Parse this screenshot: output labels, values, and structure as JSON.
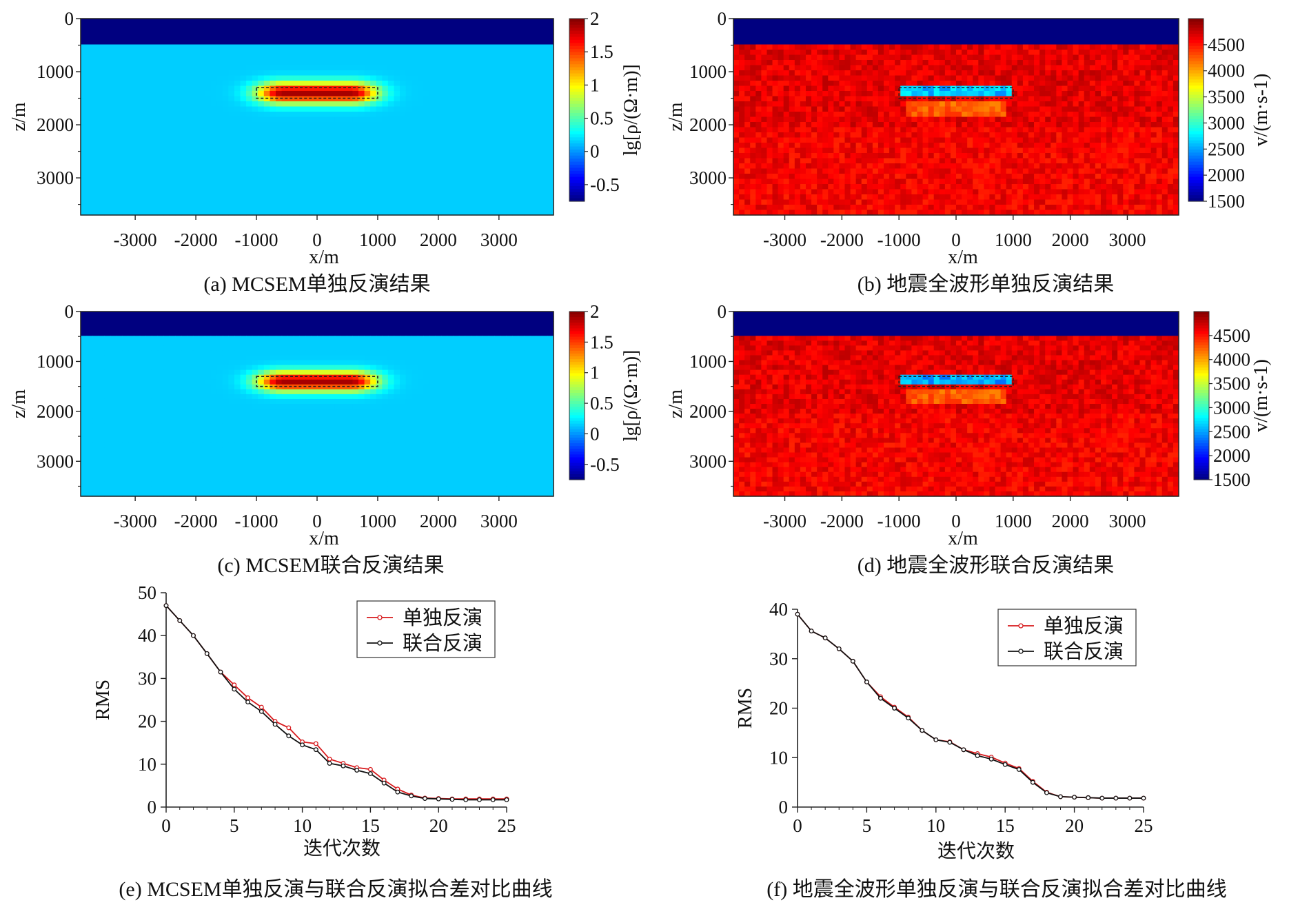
{
  "chart_data": [
    {
      "id": "a",
      "type": "heatmap",
      "caption": "(a) MCSEM单独反演结果",
      "xlabel": "x/m",
      "ylabel": "z/m",
      "xlim": [
        -3900,
        3900
      ],
      "ylim": [
        3700,
        0
      ],
      "xticks": [
        -3000,
        -2000,
        -1000,
        0,
        1000,
        2000,
        3000
      ],
      "yticks": [
        0,
        1000,
        2000,
        3000
      ],
      "colorbar": {
        "label": "lg[ρ/(Ω·m)]",
        "range": [
          -0.75,
          2
        ],
        "ticks": [
          2,
          1.5,
          1,
          0.5,
          0,
          -0.5
        ],
        "colormap": "jet"
      },
      "water_layer": {
        "z_bottom": 500,
        "value": -0.75
      },
      "background_value": 0.15,
      "anomaly": {
        "x": [
          -1000,
          1000
        ],
        "z": [
          1300,
          1500
        ],
        "peak": 1.9,
        "style": "resistive"
      }
    },
    {
      "id": "b",
      "type": "heatmap",
      "caption": "(b) 地震全波形单独反演结果",
      "xlabel": "x/m",
      "ylabel": "z/m",
      "xlim": [
        -3900,
        3900
      ],
      "ylim": [
        3700,
        0
      ],
      "xticks": [
        -3000,
        -2000,
        -1000,
        0,
        1000,
        2000,
        3000
      ],
      "yticks": [
        0,
        1000,
        2000,
        3000
      ],
      "colorbar": {
        "label": "v/(m·s-1)",
        "range": [
          1500,
          5000
        ],
        "ticks": [
          4500,
          4000,
          3500,
          3000,
          2500,
          2000,
          1500
        ],
        "colormap": "jet"
      },
      "water_layer": {
        "z_bottom": 500,
        "value": 1500
      },
      "background_value": 4650,
      "anomaly": {
        "x": [
          -1000,
          1000
        ],
        "z": [
          1300,
          1500
        ],
        "peak": 2600,
        "style": "slow"
      }
    },
    {
      "id": "c",
      "type": "heatmap",
      "caption": "(c) MCSEM联合反演结果",
      "xlabel": "x/m",
      "ylabel": "z/m",
      "xlim": [
        -3900,
        3900
      ],
      "ylim": [
        3700,
        0
      ],
      "xticks": [
        -3000,
        -2000,
        -1000,
        0,
        1000,
        2000,
        3000
      ],
      "yticks": [
        0,
        1000,
        2000,
        3000
      ],
      "colorbar": {
        "label": "lg[ρ/(Ω·m)]",
        "range": [
          -0.75,
          2
        ],
        "ticks": [
          2,
          1.5,
          1,
          0.5,
          0,
          -0.5
        ],
        "colormap": "jet"
      },
      "water_layer": {
        "z_bottom": 500,
        "value": -0.75
      },
      "background_value": 0.15,
      "anomaly": {
        "x": [
          -1000,
          1000
        ],
        "z": [
          1300,
          1500
        ],
        "peak": 1.9,
        "style": "resistive-joint"
      }
    },
    {
      "id": "d",
      "type": "heatmap",
      "caption": "(d) 地震全波形联合反演结果",
      "xlabel": "x/m",
      "ylabel": "z/m",
      "xlim": [
        -3900,
        3900
      ],
      "ylim": [
        3700,
        0
      ],
      "xticks": [
        -3000,
        -2000,
        -1000,
        0,
        1000,
        2000,
        3000
      ],
      "yticks": [
        0,
        1000,
        2000,
        3000
      ],
      "colorbar": {
        "label": "v/(m·s-1)",
        "range": [
          1500,
          5000
        ],
        "ticks": [
          4500,
          4000,
          3500,
          3000,
          2500,
          2000,
          1500
        ],
        "colormap": "jet"
      },
      "water_layer": {
        "z_bottom": 500,
        "value": 1500
      },
      "background_value": 4650,
      "anomaly": {
        "x": [
          -1000,
          1000
        ],
        "z": [
          1300,
          1500
        ],
        "peak": 2500,
        "style": "slow"
      }
    },
    {
      "id": "e",
      "type": "line",
      "caption": "(e) MCSEM单独反演与联合反演拟合差对比曲线",
      "xlabel": "迭代次数",
      "ylabel": "RMS",
      "xlim": [
        0,
        25
      ],
      "ylim": [
        0,
        50
      ],
      "xticks": [
        0,
        5,
        10,
        15,
        20,
        25
      ],
      "yticks": [
        0,
        10,
        20,
        30,
        40,
        50
      ],
      "legend": "top-right",
      "x": [
        0,
        1,
        2,
        3,
        4,
        5,
        6,
        7,
        8,
        9,
        10,
        11,
        12,
        13,
        14,
        15,
        16,
        17,
        18,
        19,
        20,
        21,
        22,
        23,
        24,
        25
      ],
      "series": [
        {
          "name": "单独反演",
          "color": "#d7191c",
          "values": [
            47,
            43.5,
            40,
            35.8,
            31.5,
            28.5,
            25.5,
            23.3,
            20,
            18.5,
            15.2,
            14.8,
            11.2,
            10.2,
            9.2,
            8.8,
            6.3,
            4.2,
            2.8,
            2.1,
            2,
            1.9,
            1.9,
            1.9,
            1.9,
            1.9
          ]
        },
        {
          "name": "联合反演",
          "color": "#111111",
          "values": [
            47,
            43.5,
            40,
            35.8,
            31.5,
            27.5,
            24.5,
            22.3,
            19.3,
            16.6,
            14.5,
            13.4,
            10.2,
            9.6,
            8.6,
            7.8,
            5.6,
            3.5,
            2.6,
            2,
            1.9,
            1.8,
            1.7,
            1.7,
            1.7,
            1.7
          ]
        }
      ]
    },
    {
      "id": "f",
      "type": "line",
      "caption": "(f) 地震全波形单独反演与联合反演拟合差对比曲线",
      "xlabel": "迭代次数",
      "ylabel": "RMS",
      "xlim": [
        0,
        25
      ],
      "ylim": [
        0,
        40
      ],
      "xticks": [
        0,
        5,
        10,
        15,
        20,
        25
      ],
      "yticks": [
        0,
        10,
        20,
        30,
        40
      ],
      "legend": "top-right",
      "x": [
        0,
        1,
        2,
        3,
        4,
        5,
        6,
        7,
        8,
        9,
        10,
        11,
        12,
        13,
        14,
        15,
        16,
        17,
        18,
        19,
        20,
        21,
        22,
        23,
        24,
        25
      ],
      "series": [
        {
          "name": "单独反演",
          "color": "#d7191c",
          "values": [
            39,
            35.6,
            34.2,
            32,
            29.5,
            25.3,
            22.3,
            20.2,
            18.2,
            15.5,
            13.6,
            13.2,
            11.6,
            10.8,
            10.1,
            8.9,
            7.8,
            5.2,
            3,
            2.1,
            2,
            1.9,
            1.8,
            1.8,
            1.8,
            1.8
          ]
        },
        {
          "name": "联合反演",
          "color": "#111111",
          "values": [
            39,
            35.6,
            34.2,
            32,
            29.5,
            25.3,
            22,
            20,
            18,
            15.5,
            13.6,
            13.1,
            11.6,
            10.4,
            9.7,
            8.6,
            7.6,
            5,
            2.9,
            2.1,
            2,
            1.9,
            1.8,
            1.8,
            1.8,
            1.8
          ]
        }
      ]
    }
  ]
}
